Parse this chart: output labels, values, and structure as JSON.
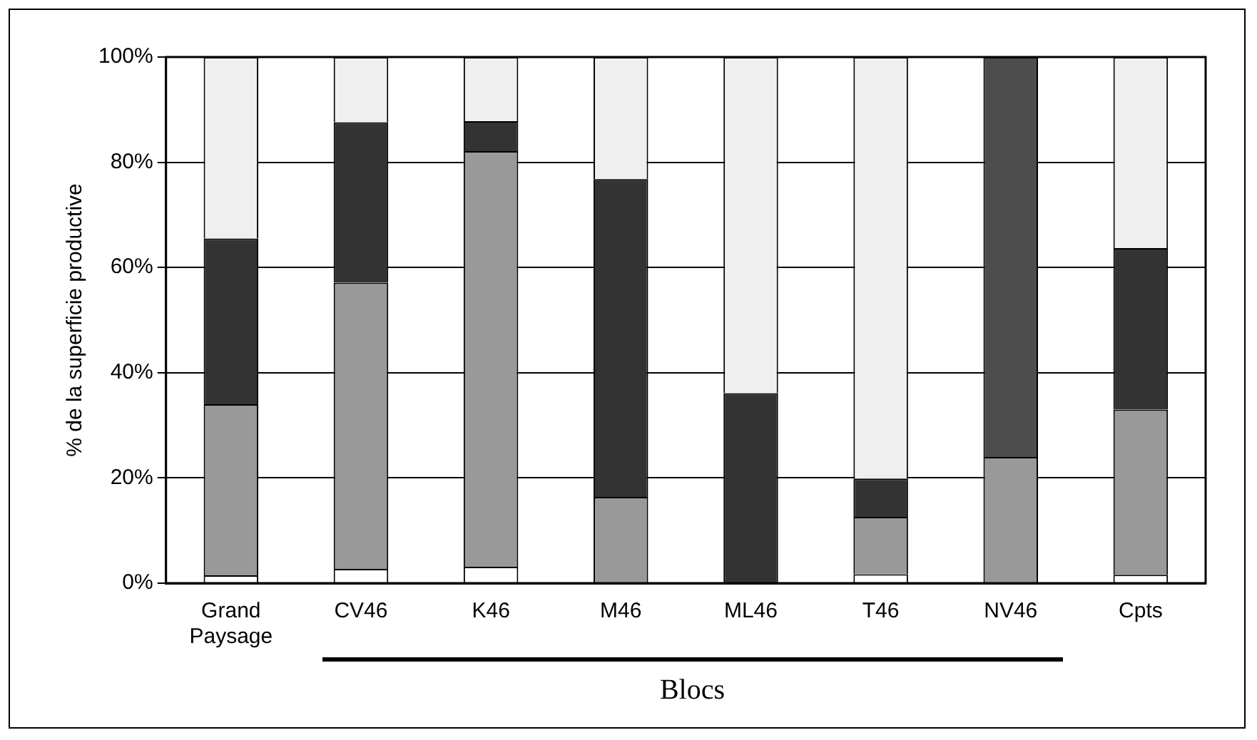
{
  "chart_data": {
    "type": "bar",
    "stacked": true,
    "ylabel": "% de la superficie productive",
    "categories": [
      "Grand Paysage",
      "CV46",
      "K46",
      "M46",
      "ML46",
      "T46",
      "NV46",
      "Cpts"
    ],
    "series": [
      {
        "color": "#ffffff",
        "values": [
          1.5,
          2.7,
          3.1,
          0,
          0,
          1.7,
          0,
          1.6
        ]
      },
      {
        "color": "#999999",
        "values": [
          32.5,
          54.4,
          79,
          16.4,
          0,
          10.9,
          24,
          31.4
        ]
      },
      {
        "colors": [
          "#333333",
          "#333333",
          "#333333",
          "#333333",
          "#333333",
          "#333333",
          "#4d4d4d",
          "#333333"
        ],
        "values": [
          31.5,
          30.5,
          5.7,
          60.4,
          36.1,
          7.3,
          76,
          30.7
        ]
      },
      {
        "color": "#efefef",
        "values": [
          34.5,
          12.4,
          12.2,
          23.2,
          63.9,
          80.1,
          0,
          36.3
        ]
      }
    ],
    "ylim": [
      0,
      100
    ],
    "yticks": [
      {
        "value": 0,
        "label": "0%"
      },
      {
        "value": 20,
        "label": "20%"
      },
      {
        "value": 40,
        "label": "40%"
      },
      {
        "value": 60,
        "label": "60%"
      },
      {
        "value": 80,
        "label": "80%"
      },
      {
        "value": 100,
        "label": "100%"
      }
    ],
    "grid": "y",
    "legend": false,
    "annotations": [
      "Blocs"
    ]
  }
}
